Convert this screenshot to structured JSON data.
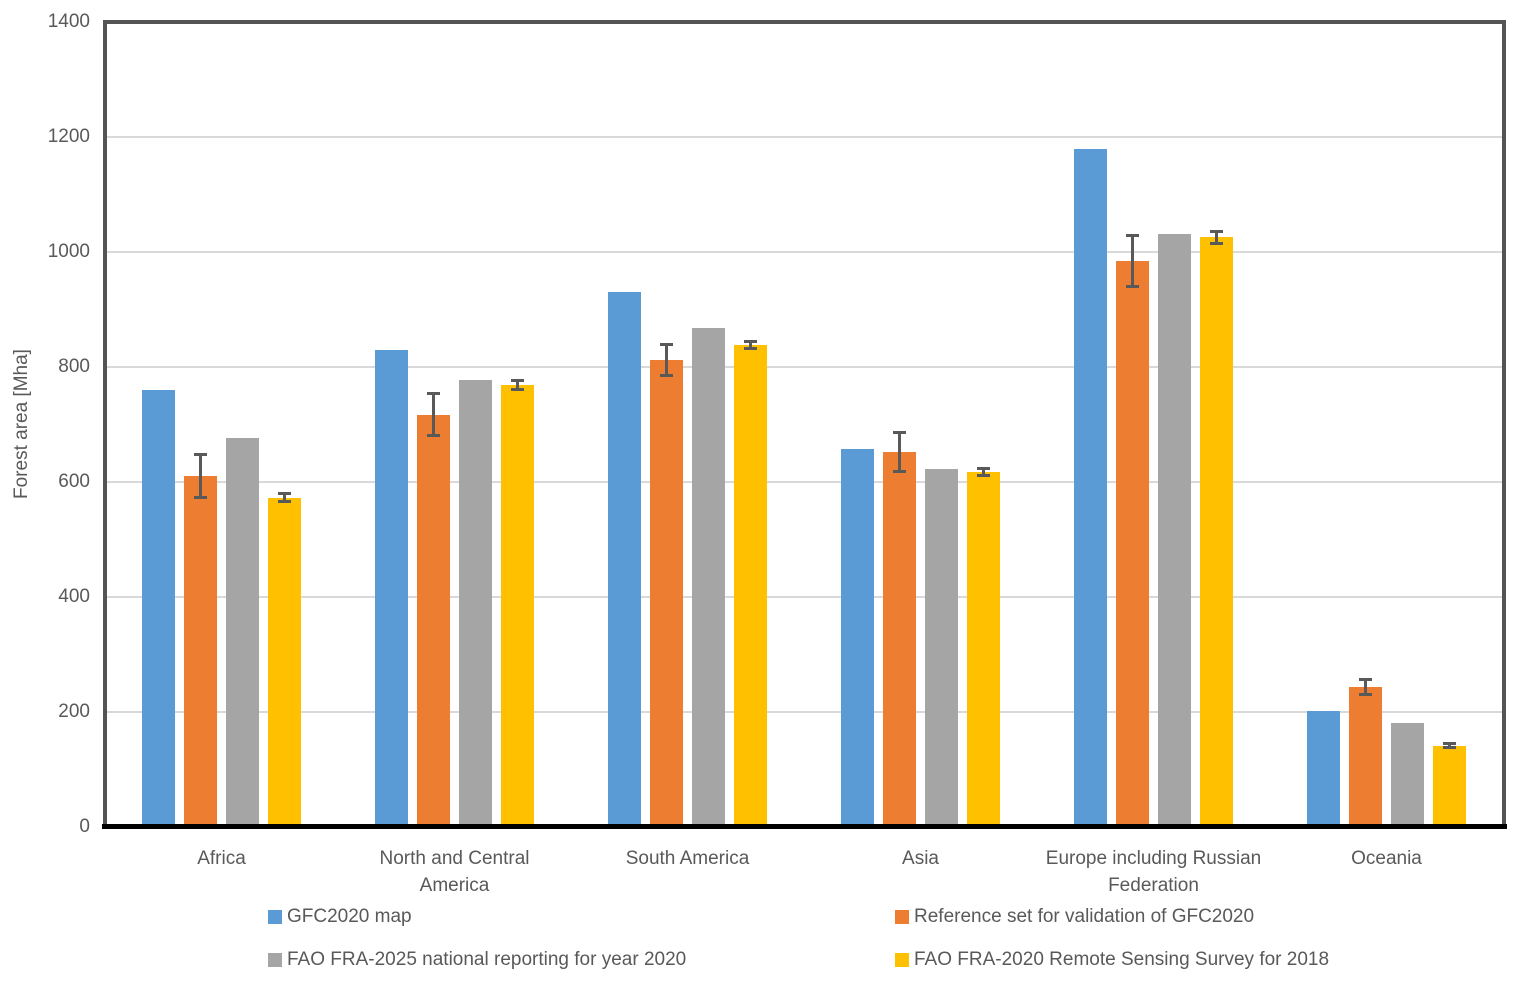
{
  "colors": {
    "background": "#FFFFFF",
    "text": "#595959",
    "gridline": "#D9D9D9",
    "plot_border": "#545454",
    "axis_line": "#000000",
    "error_bar": "#595959"
  },
  "chart_data": {
    "type": "bar",
    "title": "",
    "xlabel": "",
    "ylabel": "Forest area [Mha]",
    "unit": "Mha",
    "ylim": [
      0,
      1400
    ],
    "yticks": [
      0,
      200,
      400,
      600,
      800,
      1000,
      1200,
      1400
    ],
    "grid": "horizontal gridlines every 200",
    "legend_position": "bottom, two columns by two rows",
    "categories": [
      "Africa",
      "North and Central America",
      "South America",
      "Asia",
      "Europe including Russian Federation",
      "Oceania"
    ],
    "series": [
      {
        "name": "GFC2020 map",
        "color": "#5B9BD5",
        "values": [
          760,
          830,
          930,
          658,
          1180,
          202
        ],
        "errors": null
      },
      {
        "name": "Reference set for validation of GFC2020",
        "color": "#ED7D31",
        "values": [
          610,
          717,
          812,
          652,
          985,
          243
        ],
        "errors": [
          40,
          39,
          29,
          36,
          47,
          16
        ]
      },
      {
        "name": "FAO FRA-2025 national reporting for year 2020",
        "color": "#A5A5A5",
        "values": [
          676,
          778,
          868,
          622,
          1032,
          181
        ],
        "errors": null
      },
      {
        "name": "FAO FRA-2020 Remote Sensing Survey for 2018",
        "color": "#FFC000",
        "values": [
          573,
          769,
          838,
          617,
          1026,
          141
        ],
        "errors": [
          9,
          10,
          9,
          9,
          13,
          6
        ]
      }
    ],
    "error_bars_note": "error bars with end caps shown only on the Reference set and FAO FRA-2020 Remote Sensing Survey series"
  }
}
